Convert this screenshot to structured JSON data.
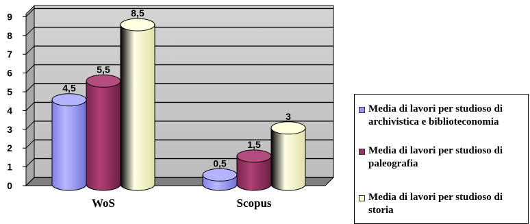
{
  "chart_data": {
    "type": "bar",
    "categories": [
      "WoS",
      "Scopus"
    ],
    "series": [
      {
        "name": "Media di lavori per studioso di archivistica e biblioteconomia",
        "values": [
          4.5,
          0.5
        ],
        "labels": [
          "4,5",
          "0,5"
        ],
        "color": "#9999ff",
        "shade": "#6666cc",
        "top": "#b3b3ff"
      },
      {
        "name": "Media di lavori per studioso di paleografia",
        "values": [
          5.5,
          1.5
        ],
        "labels": [
          "5,5",
          "1,5"
        ],
        "color": "#993366",
        "shade": "#6b2147",
        "top": "#b34d80"
      },
      {
        "name": "Media di lavori per studioso di storia",
        "values": [
          8.5,
          3
        ],
        "labels": [
          "8,5",
          "3"
        ],
        "color": "#ffffcc",
        "shade": "#d9d9a6",
        "top": "#ffffdd"
      }
    ],
    "yticks": [
      "0",
      "1",
      "2",
      "3",
      "4",
      "5",
      "6",
      "7",
      "8",
      "9"
    ],
    "ylim": [
      0,
      9
    ],
    "grid": true,
    "chart_type_detail": "3d-cylinder",
    "legend_position": "right",
    "wall_color": "#c0c0c0",
    "floor_color": "#808080"
  }
}
